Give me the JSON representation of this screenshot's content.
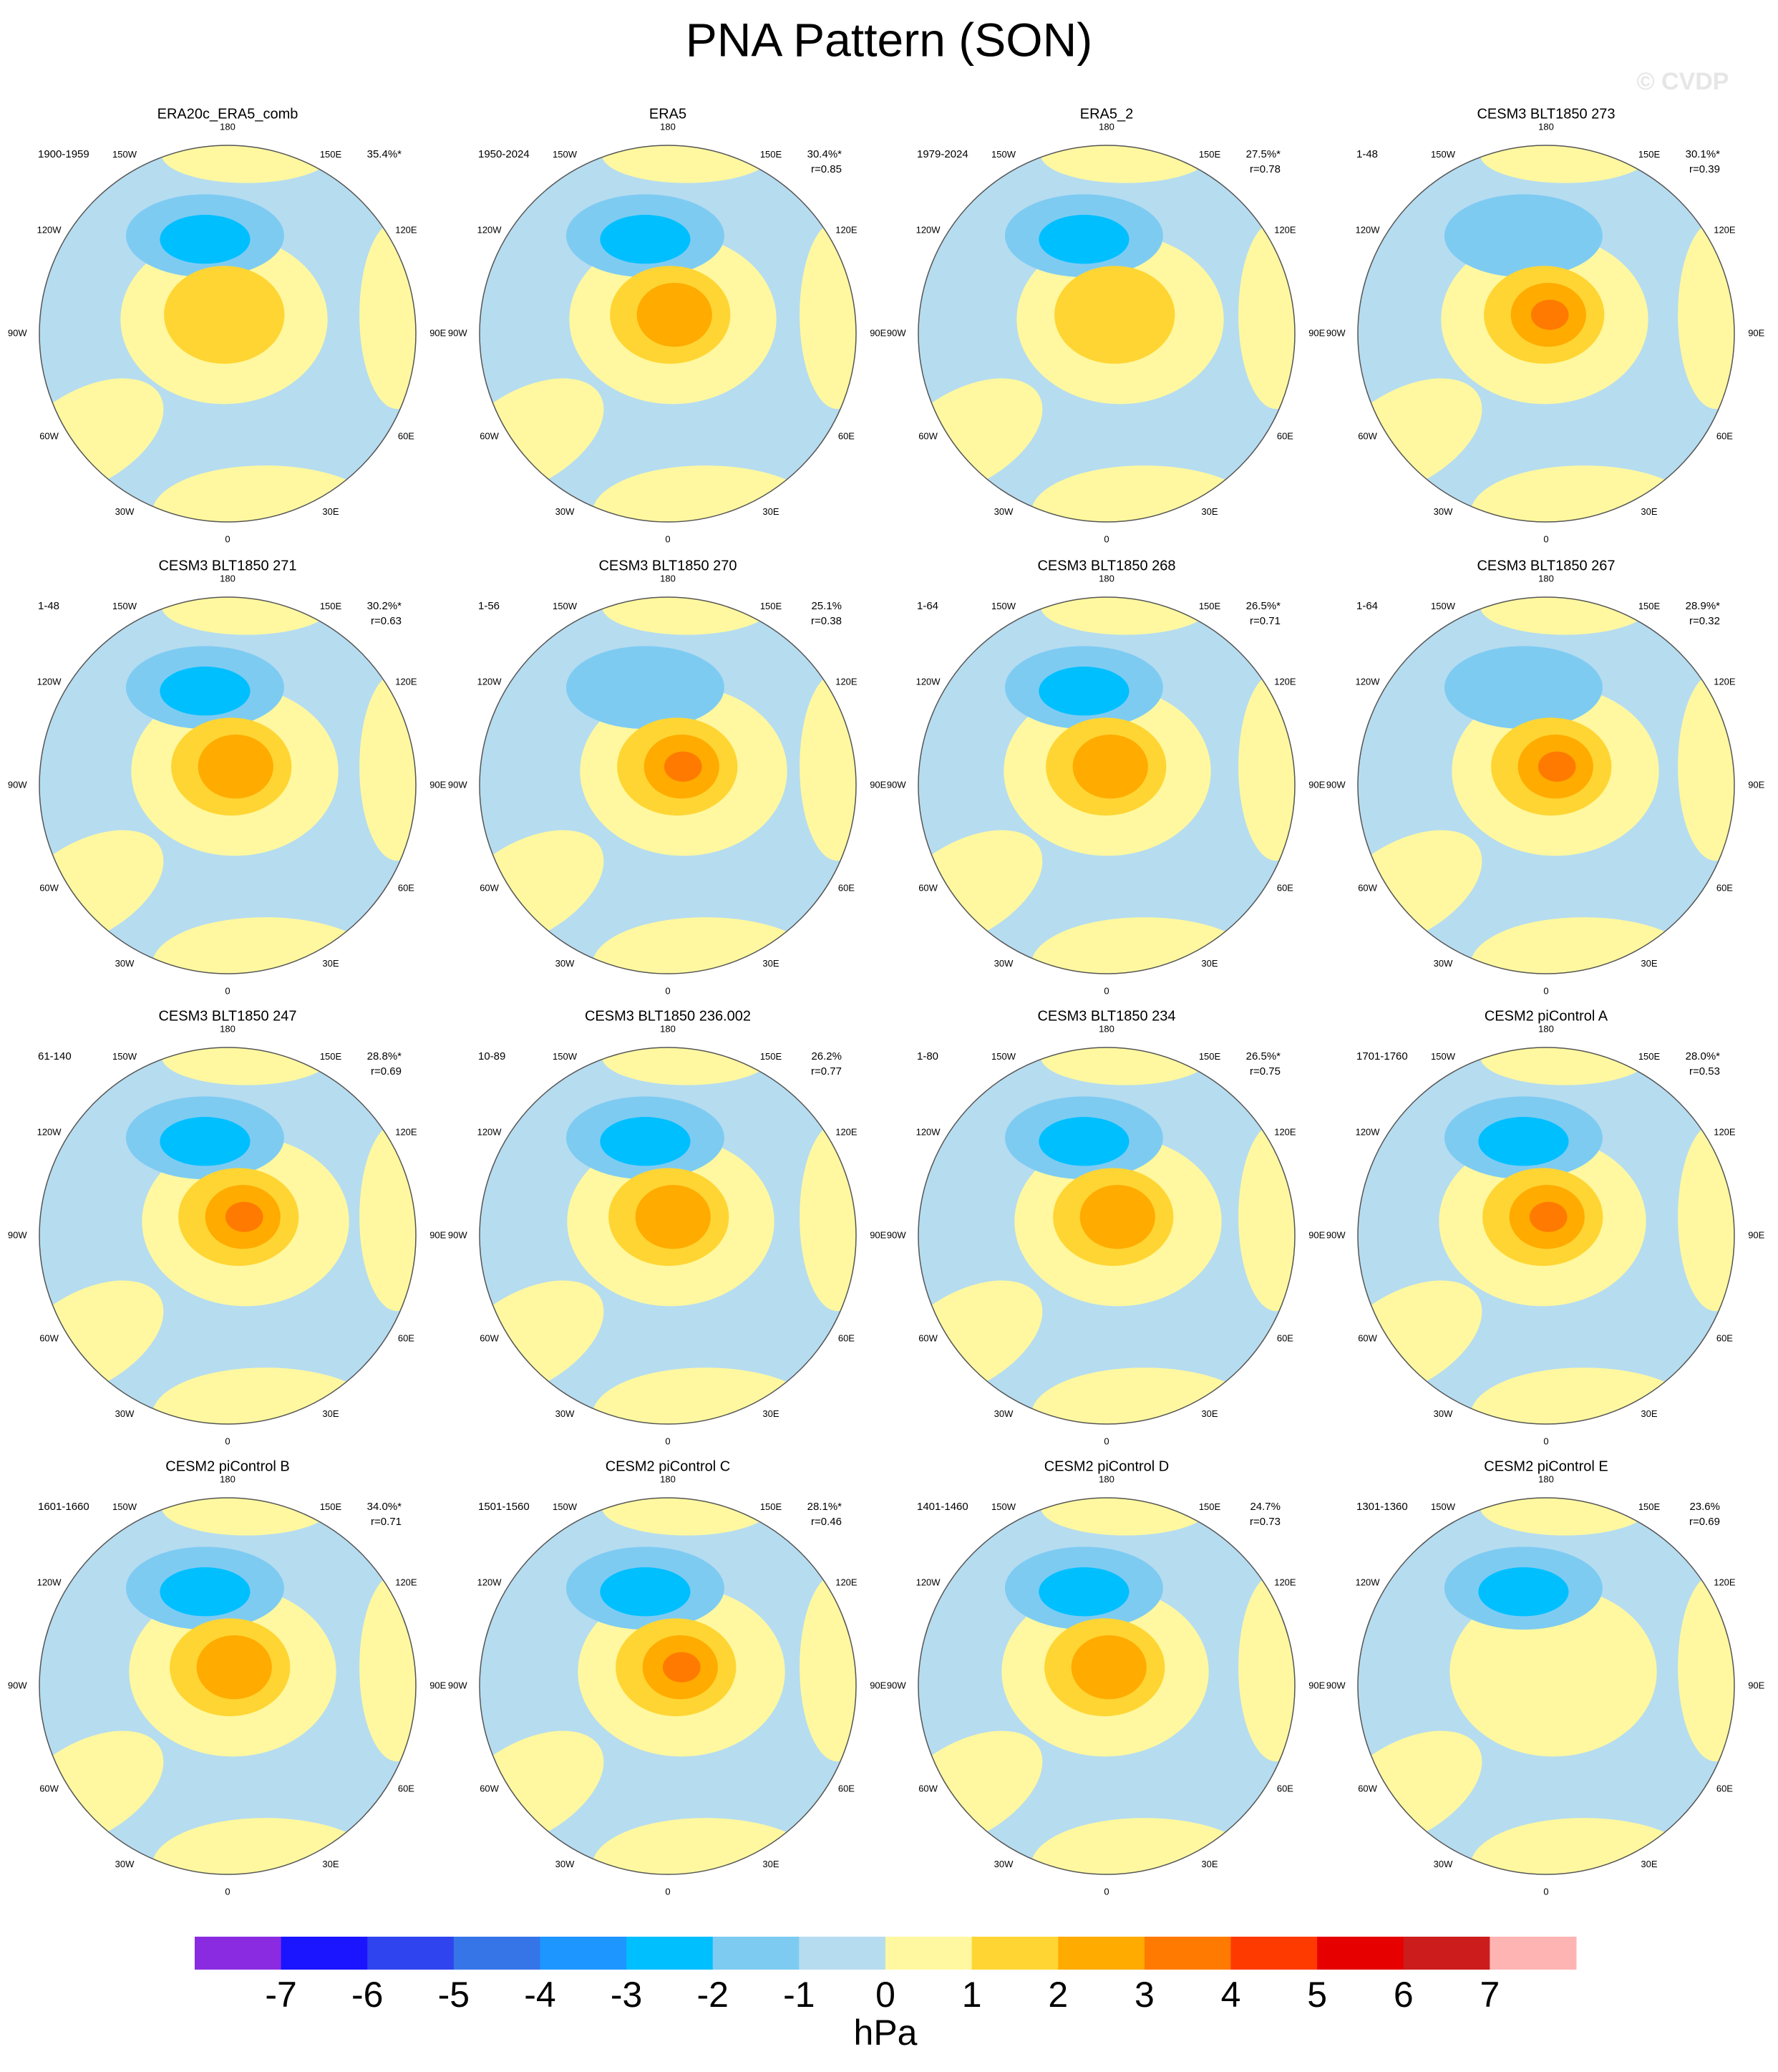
{
  "title": "PNA Pattern (SON)",
  "watermark": "© CVDP",
  "longitude_labels": [
    "180",
    "150E",
    "120E",
    "90E",
    "60E",
    "30E",
    "0",
    "30W",
    "60W",
    "90W",
    "120W",
    "150W"
  ],
  "panels": [
    {
      "title": "ERA20c_ERA5_comb",
      "period": "1900-1959",
      "pct": "35.4%*"
    },
    {
      "title": "ERA5",
      "period": "1950-2024",
      "pct": "30.4%*",
      "r": "r=0.85"
    },
    {
      "title": "ERA5_2",
      "period": "1979-2024",
      "pct": "27.5%*",
      "r": "r=0.78"
    },
    {
      "title": "CESM3 BLT1850 273",
      "period": "1-48",
      "pct": "30.1%*",
      "r": "r=0.39"
    },
    {
      "title": "CESM3 BLT1850 271",
      "period": "1-48",
      "pct": "30.2%*",
      "r": "r=0.63"
    },
    {
      "title": "CESM3 BLT1850 270",
      "period": "1-56",
      "pct": "25.1%",
      "r": "r=0.38"
    },
    {
      "title": "CESM3 BLT1850 268",
      "period": "1-64",
      "pct": "26.5%*",
      "r": "r=0.71"
    },
    {
      "title": "CESM3 BLT1850 267",
      "period": "1-64",
      "pct": "28.9%*",
      "r": "r=0.32"
    },
    {
      "title": "CESM3 BLT1850 247",
      "period": "61-140",
      "pct": "28.8%*",
      "r": "r=0.69"
    },
    {
      "title": "CESM3 BLT1850 236.002",
      "period": "10-89",
      "pct": "26.2%",
      "r": "r=0.77"
    },
    {
      "title": "CESM3 BLT1850 234",
      "period": "1-80",
      "pct": "26.5%*",
      "r": "r=0.75"
    },
    {
      "title": "CESM2 piControl A",
      "period": "1701-1760",
      "pct": "28.0%*",
      "r": "r=0.53"
    },
    {
      "title": "CESM2 piControl B",
      "period": "1601-1660",
      "pct": "34.0%*",
      "r": "r=0.71"
    },
    {
      "title": "CESM2 piControl C",
      "period": "1501-1560",
      "pct": "28.1%*",
      "r": "r=0.46"
    },
    {
      "title": "CESM2 piControl D",
      "period": "1401-1460",
      "pct": "24.7%",
      "r": "r=0.73"
    },
    {
      "title": "CESM2 piControl E",
      "period": "1301-1360",
      "pct": "23.6%",
      "r": "r=0.69"
    }
  ],
  "colorbar": {
    "colors": [
      "#8a2be2",
      "#1a14ff",
      "#2f44ef",
      "#3575e8",
      "#1e96ff",
      "#00bfff",
      "#7ecbf2",
      "#b6dcf0",
      "#fff8a0",
      "#ffd534",
      "#ffab00",
      "#ff7a00",
      "#ff3a00",
      "#e60000",
      "#cc1c1c",
      "#ffb4b4"
    ],
    "ticks": [
      -7,
      -6,
      -5,
      -4,
      -3,
      -2,
      -1,
      0,
      1,
      2,
      3,
      4,
      5,
      6,
      7
    ],
    "label": "hPa"
  }
}
